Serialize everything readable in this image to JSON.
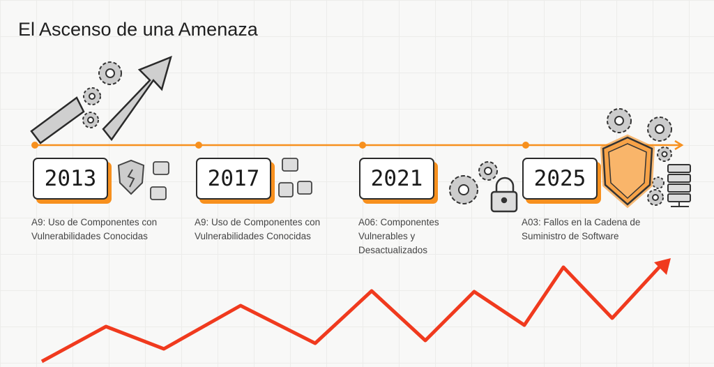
{
  "title": "El Ascenso de una Amenaza",
  "accent_color": "#f7901e",
  "trend_color": "#f03a1e",
  "milestones": [
    {
      "year": "2013",
      "label": "A9: Uso de Componentes con Vulnerabilidades Conocidas",
      "icon": "broken-shield-puzzle-icon"
    },
    {
      "year": "2017",
      "label": "A9: Uso de Componentes con Vulnerabilidades Conocidas",
      "icon": "puzzle-pieces-icon"
    },
    {
      "year": "2021",
      "label": "A06: Componentes Vulnerables y Desactualizados",
      "icon": "gears-lock-icon"
    },
    {
      "year": "2025",
      "label": "A03: Fallos en la Cadena de Suministro de Software",
      "icon": "shield-server-gears-icon"
    }
  ]
}
